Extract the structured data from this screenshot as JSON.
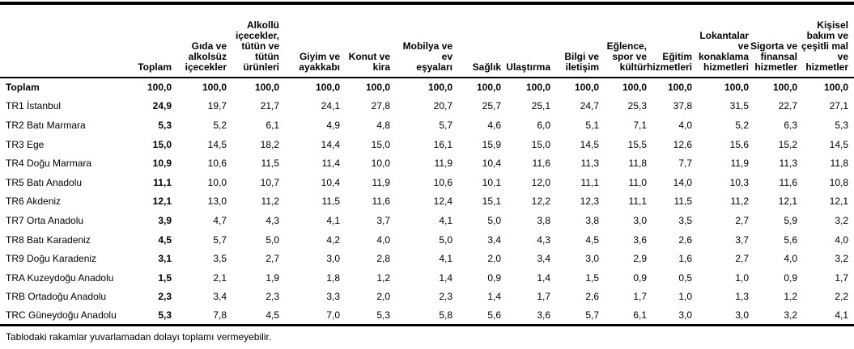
{
  "page": {
    "footnote": "Tablodaki rakamlar yuvarlamadan dolayı toplamı vermeyebilir."
  },
  "table": {
    "columns": [
      "Toplam",
      "Gıda ve\nalkolsüz\niçecekler",
      "Alkollü\niçecekler,\ntütün ve\ntütün\nürünleri",
      "Giyim ve\nayakkabı",
      "Konut ve\nkira",
      "Mobilya ve\nev\neşyaları",
      "Sağlık",
      "Ulaştırma",
      "Bilgi ve\niletişim",
      "Eğlence,\nspor ve\nkültür",
      "Eğitim\nhizmetleri",
      "Lokantalar\nve\nkonaklama\nhizmetleri",
      "Sigorta ve\nfinansal\nhizmetler",
      "Kişisel\nbakım ve\nçeşitli mal\nve\nhizmetler"
    ],
    "rows": [
      {
        "label": "Toplam",
        "bold": true,
        "values": [
          "100,0",
          "100,0",
          "100,0",
          "100,0",
          "100,0",
          "100,0",
          "100,0",
          "100,0",
          "100,0",
          "100,0",
          "100,0",
          "100,0",
          "100,0",
          "100,0"
        ]
      },
      {
        "label": "TR1 İstanbul",
        "bold": false,
        "values": [
          "24,9",
          "19,7",
          "21,7",
          "24,1",
          "27,8",
          "20,7",
          "25,7",
          "25,1",
          "24,7",
          "25,3",
          "37,8",
          "31,5",
          "22,7",
          "27,1"
        ]
      },
      {
        "label": "TR2 Batı Marmara",
        "bold": false,
        "values": [
          "5,3",
          "5,2",
          "6,1",
          "4,9",
          "4,8",
          "5,7",
          "4,6",
          "6,0",
          "5,1",
          "7,1",
          "4,0",
          "5,2",
          "6,3",
          "5,3"
        ]
      },
      {
        "label": "TR3 Ege",
        "bold": false,
        "values": [
          "15,0",
          "14,5",
          "18,2",
          "14,4",
          "15,0",
          "16,1",
          "15,9",
          "15,0",
          "14,5",
          "15,5",
          "12,6",
          "15,6",
          "15,2",
          "14,5"
        ]
      },
      {
        "label": "TR4 Doğu Marmara",
        "bold": false,
        "values": [
          "10,9",
          "10,6",
          "11,5",
          "11,4",
          "10,0",
          "11,9",
          "10,4",
          "11,6",
          "11,3",
          "11,8",
          "7,7",
          "11,9",
          "11,3",
          "11,8"
        ]
      },
      {
        "label": "TR5 Batı Anadolu",
        "bold": false,
        "values": [
          "11,1",
          "10,0",
          "10,7",
          "10,4",
          "11,9",
          "10,6",
          "10,1",
          "12,0",
          "11,1",
          "11,0",
          "14,0",
          "10,3",
          "11,6",
          "10,8"
        ]
      },
      {
        "label": "TR6 Akdeniz",
        "bold": false,
        "values": [
          "12,1",
          "13,0",
          "11,2",
          "11,5",
          "11,6",
          "12,4",
          "15,1",
          "12,2",
          "12,3",
          "11,1",
          "11,5",
          "11,2",
          "12,1",
          "12,1"
        ]
      },
      {
        "label": "TR7 Orta Anadolu",
        "bold": false,
        "values": [
          "3,9",
          "4,7",
          "4,3",
          "4,1",
          "3,7",
          "4,1",
          "5,0",
          "3,8",
          "3,8",
          "3,0",
          "3,5",
          "2,7",
          "5,9",
          "3,2"
        ]
      },
      {
        "label": "TR8 Batı Karadeniz",
        "bold": false,
        "values": [
          "4,5",
          "5,7",
          "5,0",
          "4,2",
          "4,0",
          "5,0",
          "3,4",
          "4,3",
          "4,5",
          "3,6",
          "2,6",
          "3,7",
          "5,6",
          "4,0"
        ]
      },
      {
        "label": "TR9 Doğu Karadeniz",
        "bold": false,
        "values": [
          "3,1",
          "3,5",
          "2,7",
          "3,0",
          "2,8",
          "4,1",
          "2,0",
          "3,4",
          "3,0",
          "2,9",
          "1,6",
          "2,7",
          "4,0",
          "3,2"
        ]
      },
      {
        "label": "TRA Kuzeydoğu Anadolu",
        "bold": false,
        "values": [
          "1,5",
          "2,1",
          "1,9",
          "1,8",
          "1,2",
          "1,4",
          "0,9",
          "1,4",
          "1,5",
          "0,9",
          "0,5",
          "1,0",
          "0,9",
          "1,7"
        ]
      },
      {
        "label": "TRB Ortadoğu Anadolu",
        "bold": false,
        "values": [
          "2,3",
          "3,4",
          "2,3",
          "3,3",
          "2,0",
          "2,3",
          "1,4",
          "1,7",
          "2,6",
          "1,7",
          "1,0",
          "1,3",
          "1,2",
          "2,2"
        ]
      },
      {
        "label": "TRC Güneydoğu Anadolu",
        "bold": false,
        "values": [
          "5,3",
          "7,8",
          "4,5",
          "7,0",
          "5,3",
          "5,8",
          "5,6",
          "3,6",
          "5,7",
          "6,1",
          "3,0",
          "3,0",
          "3,2",
          "4,1"
        ]
      }
    ]
  }
}
